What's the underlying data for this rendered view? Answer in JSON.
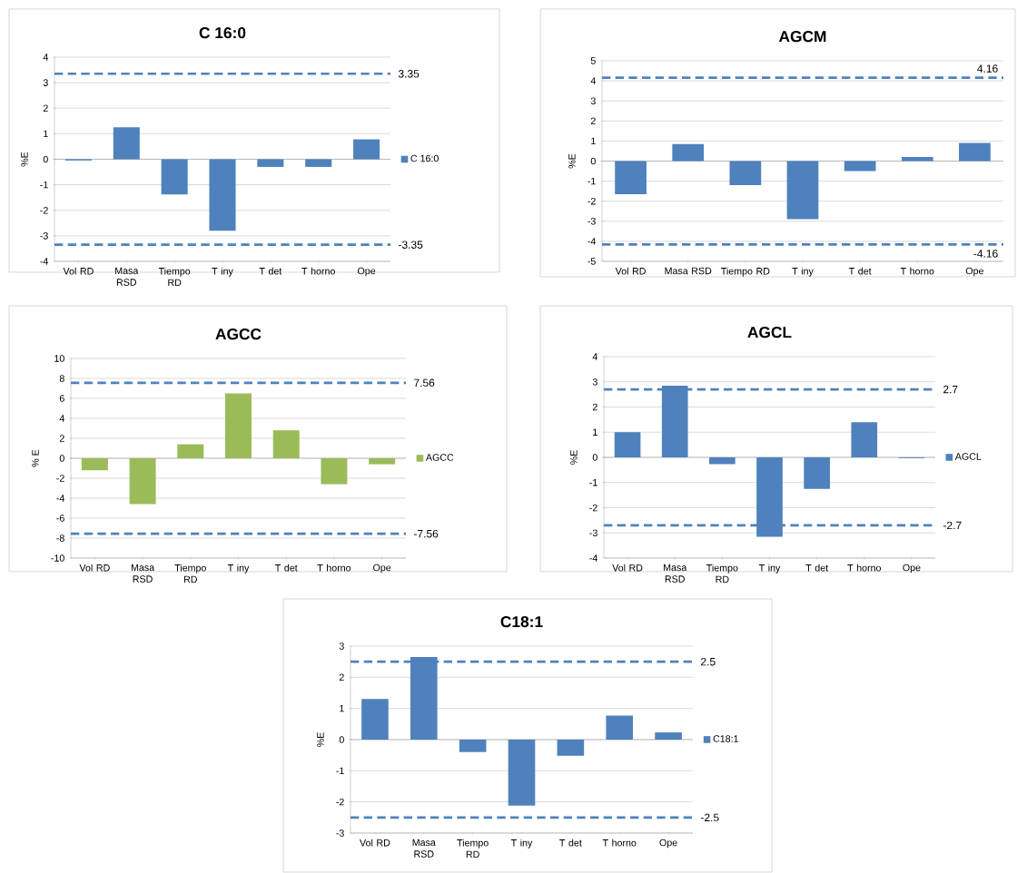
{
  "chart_data": [
    {
      "type": "bar",
      "title": "C 16:0",
      "ylabel": "%E",
      "categories": [
        "Vol RD",
        "Masa RSD",
        "Tiempo RD",
        "T iny",
        "T det",
        "T horno",
        "Ope"
      ],
      "series": [
        {
          "name": "C 16:0",
          "color": "#4f81bd",
          "values": [
            -0.05,
            1.25,
            -1.38,
            -2.8,
            -0.3,
            -0.3,
            0.78
          ]
        }
      ],
      "ylim": [
        -4,
        4
      ],
      "yticks": [
        -4,
        -3,
        -2,
        -1,
        0,
        1,
        2,
        3,
        4
      ],
      "grid": "y",
      "legend": "right",
      "ref_lines": [
        {
          "axis": "y",
          "value": 3.35,
          "label": "3.35",
          "color": "#4f81bd",
          "line_style": "dashed"
        },
        {
          "axis": "y",
          "value": -3.35,
          "label": "-3.35",
          "color": "#4f81bd",
          "line_style": "dashed"
        }
      ]
    },
    {
      "type": "bar",
      "title": "AGCM",
      "ylabel": "%E",
      "categories": [
        "Vol RD",
        "Masa RSD",
        "Tiempo RD",
        "T iny",
        "T det",
        "T horno",
        "Ope"
      ],
      "series": [
        {
          "color": "#4f81bd",
          "values": [
            -1.65,
            0.85,
            -1.2,
            -2.9,
            -0.5,
            0.2,
            0.9
          ]
        }
      ],
      "ylim": [
        -5,
        5
      ],
      "yticks": [
        -5,
        -4,
        -3,
        -2,
        -1,
        0,
        1,
        2,
        3,
        4,
        5
      ],
      "grid": "y",
      "ref_lines": [
        {
          "axis": "y",
          "value": 4.16,
          "label": "4.16",
          "color": "#4f81bd",
          "line_style": "dashed"
        },
        {
          "axis": "y",
          "value": -4.16,
          "label": "-4.16",
          "color": "#4f81bd",
          "line_style": "dashed"
        }
      ]
    },
    {
      "type": "bar",
      "title": "AGCC",
      "ylabel": "% E",
      "categories": [
        "Vol RD",
        "Masa RSD",
        "Tiempo RD",
        "T iny",
        "T det",
        "T horno",
        "Ope"
      ],
      "series": [
        {
          "name": "AGCC",
          "color": "#9bbb59",
          "values": [
            -1.2,
            -4.6,
            1.4,
            6.5,
            2.8,
            -2.6,
            -0.6
          ]
        }
      ],
      "ylim": [
        -10,
        10
      ],
      "yticks": [
        -10,
        -8,
        -6,
        -4,
        -2,
        0,
        2,
        4,
        6,
        8,
        10
      ],
      "grid": "y",
      "legend": "right",
      "ref_lines": [
        {
          "axis": "y",
          "value": 7.56,
          "label": "7.56",
          "color": "#4f81bd",
          "line_style": "dashed"
        },
        {
          "axis": "y",
          "value": -7.56,
          "label": "-7.56",
          "color": "#4f81bd",
          "line_style": "dashed"
        }
      ]
    },
    {
      "type": "bar",
      "title": "AGCL",
      "ylabel": "%E",
      "categories": [
        "Vol RD",
        "Masa RSD",
        "Tiempo RD",
        "T iny",
        "T det",
        "T horno",
        "Ope"
      ],
      "series": [
        {
          "name": "AGCL",
          "color": "#4f81bd",
          "values": [
            1.0,
            2.85,
            -0.27,
            -3.15,
            -1.25,
            1.4,
            -0.03
          ]
        }
      ],
      "ylim": [
        -4,
        4
      ],
      "yticks": [
        -4,
        -3,
        -2,
        -1,
        0,
        1,
        2,
        3,
        4
      ],
      "grid": "y",
      "legend": "right",
      "ref_lines": [
        {
          "axis": "y",
          "value": 2.7,
          "label": "2.7",
          "color": "#4f81bd",
          "line_style": "dashed"
        },
        {
          "axis": "y",
          "value": -2.7,
          "label": "-2.7",
          "color": "#4f81bd",
          "line_style": "dashed"
        }
      ]
    },
    {
      "type": "bar",
      "title": "C18:1",
      "ylabel": "%E",
      "categories": [
        "Vol RD",
        "Masa RSD",
        "Tiempo RD",
        "T iny",
        "T det",
        "T horno",
        "Ope"
      ],
      "series": [
        {
          "name": "C18:1",
          "color": "#4f81bd",
          "values": [
            1.3,
            2.65,
            -0.4,
            -2.12,
            -0.52,
            0.77,
            0.23
          ]
        }
      ],
      "ylim": [
        -3,
        3
      ],
      "yticks": [
        -3,
        -2,
        -1,
        0,
        1,
        2,
        3
      ],
      "grid": "y",
      "legend": "right",
      "ref_lines": [
        {
          "axis": "y",
          "value": 2.5,
          "label": "2.5",
          "color": "#4f81bd",
          "line_style": "dashed"
        },
        {
          "axis": "y",
          "value": -2.5,
          "label": "-2.5",
          "color": "#4f81bd",
          "line_style": "dashed"
        }
      ]
    }
  ]
}
